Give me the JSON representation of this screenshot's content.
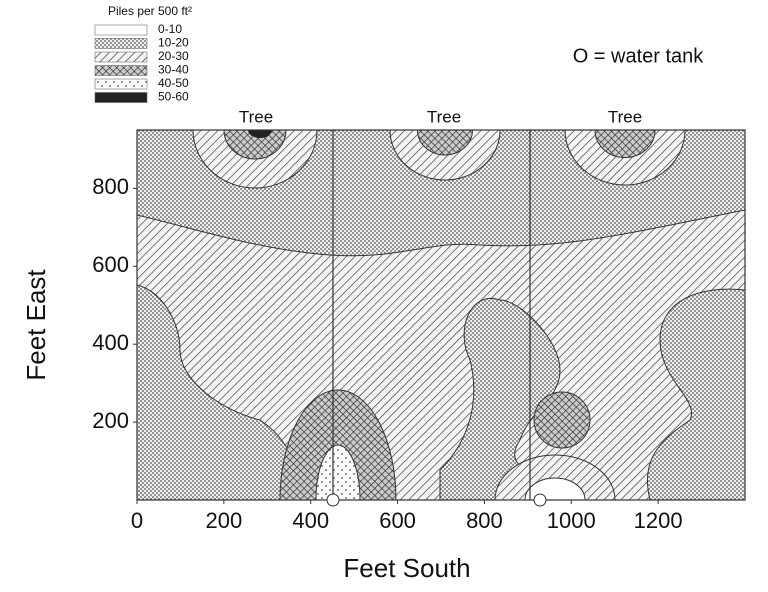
{
  "chart_data": {
    "type": "contour",
    "legend_title": "Piles per 500 ft²",
    "levels": [
      {
        "label": "0-10",
        "pattern": "blank"
      },
      {
        "label": "10-20",
        "pattern": "dense-dots"
      },
      {
        "label": "20-30",
        "pattern": "hatch"
      },
      {
        "label": "30-40",
        "pattern": "crosshatch"
      },
      {
        "label": "40-50",
        "pattern": "sparse-dots"
      },
      {
        "label": "50-60",
        "pattern": "solid"
      }
    ],
    "annotations": [
      "O = water tank",
      "Tree",
      "Tree",
      "Tree"
    ],
    "x_label": "Feet South",
    "y_label": "Feet East",
    "xlim": [
      0,
      1400
    ],
    "ylim": [
      0,
      950
    ],
    "xticks": [
      0,
      200,
      400,
      600,
      800,
      1000,
      1200
    ],
    "yticks": [
      200,
      400,
      600,
      800
    ]
  }
}
